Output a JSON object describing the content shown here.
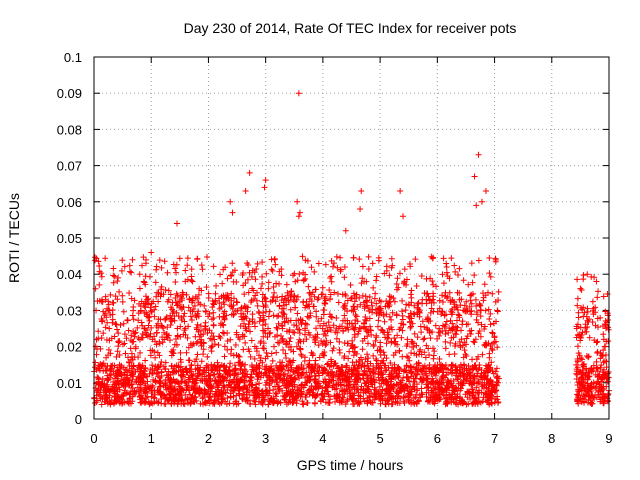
{
  "colors": {
    "series": "#ff0000",
    "grid": "#a0a0a0",
    "frame": "#000000",
    "background": "#ffffff"
  },
  "chart_data": {
    "type": "scatter",
    "title": "Day 230 of 2014, Rate Of TEC Index for receiver pots",
    "xlabel": "GPS time / hours",
    "ylabel": "ROTI / TECUs",
    "xlim": [
      0,
      9
    ],
    "ylim": [
      0,
      0.1
    ],
    "xticks": [
      0,
      1,
      2,
      3,
      4,
      5,
      6,
      7,
      8,
      9
    ],
    "yticks": [
      0,
      0.01,
      0.02,
      0.03,
      0.04,
      0.05,
      0.06,
      0.07,
      0.08,
      0.09,
      0.1
    ],
    "xtick_labels": [
      "0",
      "1",
      "2",
      "3",
      "4",
      "5",
      "6",
      "7",
      "8",
      "9"
    ],
    "ytick_labels": [
      "0",
      "0.01",
      "0.02",
      "0.03",
      "0.04",
      "0.05",
      "0.06",
      "0.07",
      "0.08",
      "0.09",
      "0.1"
    ],
    "grid": true,
    "marker": "plus",
    "segments": [
      {
        "x_start": 0.0,
        "x_end": 7.08,
        "typical_range": [
          0.004,
          0.035
        ],
        "upper_envelope": 0.045
      },
      {
        "x_start": 8.42,
        "x_end": 9.0,
        "typical_range": [
          0.004,
          0.03
        ],
        "upper_envelope": 0.04
      }
    ],
    "highlights": [
      {
        "x": 3.58,
        "y": 0.09
      },
      {
        "x": 6.72,
        "y": 0.073
      },
      {
        "x": 2.72,
        "y": 0.068
      },
      {
        "x": 6.65,
        "y": 0.067
      },
      {
        "x": 3.0,
        "y": 0.066
      },
      {
        "x": 2.98,
        "y": 0.064
      },
      {
        "x": 4.67,
        "y": 0.063
      },
      {
        "x": 5.35,
        "y": 0.063
      },
      {
        "x": 2.65,
        "y": 0.063
      },
      {
        "x": 6.85,
        "y": 0.063
      },
      {
        "x": 2.38,
        "y": 0.06
      },
      {
        "x": 3.55,
        "y": 0.06
      },
      {
        "x": 6.78,
        "y": 0.06
      },
      {
        "x": 2.42,
        "y": 0.057
      },
      {
        "x": 4.65,
        "y": 0.058
      },
      {
        "x": 3.6,
        "y": 0.057
      },
      {
        "x": 5.4,
        "y": 0.056
      },
      {
        "x": 3.58,
        "y": 0.056
      },
      {
        "x": 1.45,
        "y": 0.054
      },
      {
        "x": 4.4,
        "y": 0.052
      },
      {
        "x": 6.68,
        "y": 0.059
      },
      {
        "x": 0.42,
        "y": 0.039
      },
      {
        "x": 1.0,
        "y": 0.046
      },
      {
        "x": 8.62,
        "y": 0.04
      },
      {
        "x": 8.78,
        "y": 0.038
      },
      {
        "x": 8.5,
        "y": 0.036
      }
    ]
  }
}
